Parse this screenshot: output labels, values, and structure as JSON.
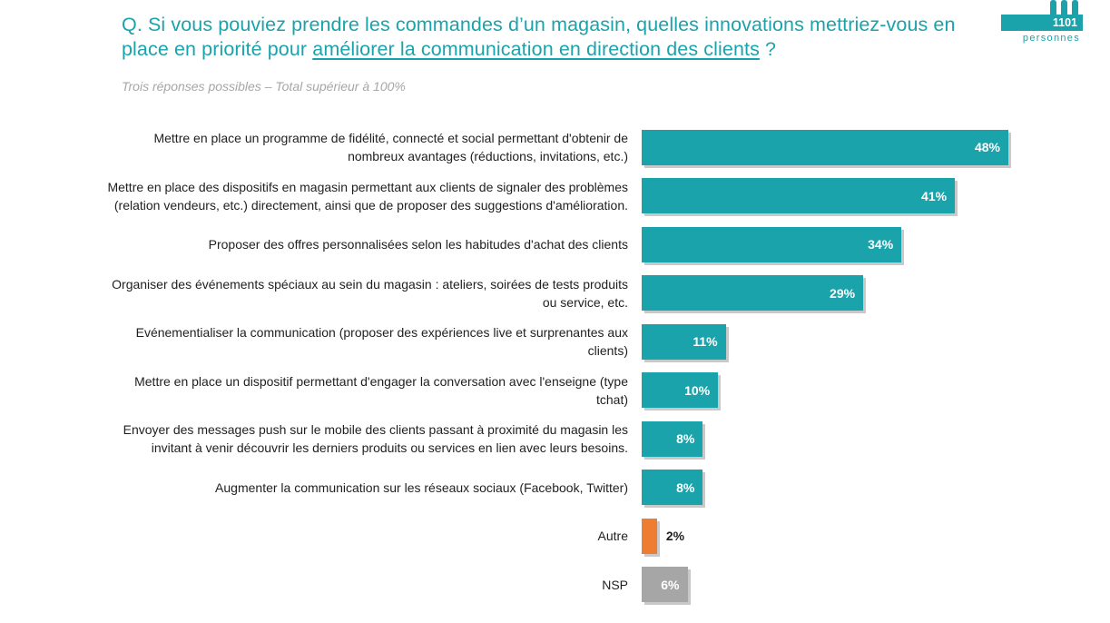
{
  "header": {
    "question_part1": "Q. Si vous pouviez prendre les commandes d’un magasin, quelles innovations mettriez-vous en place en priorité pour ",
    "question_highlight": "améliorer la communication en direction des clients",
    "question_end": " ?",
    "subtitle": "Trois réponses possibles – Total supérieur à 100%"
  },
  "badge": {
    "count": "1101",
    "label": "personnes",
    "icon": "people-icon"
  },
  "colors": {
    "teal": "#1ba3ab",
    "orange": "#ed7d31",
    "gray": "#a6a6a6"
  },
  "chart_data": {
    "type": "bar",
    "orientation": "horizontal",
    "unit": "%",
    "xlim": [
      0,
      48
    ],
    "categories": [
      "Mettre en place un programme de fidélité, connecté et social permettant d'obtenir de nombreux avantages (réductions, invitations, etc.)",
      "Mettre en place des dispositifs en magasin permettant aux clients de signaler des problèmes (relation vendeurs, etc.) directement, ainsi que de proposer des suggestions d'amélioration.",
      "Proposer des offres personnalisées selon les habitudes d'achat des clients",
      "Organiser des événements spéciaux au sein du magasin : ateliers, soirées de tests produits ou service, etc.",
      "Evénementialiser la communication (proposer des expériences live et surprenantes aux clients)",
      "Mettre en place un dispositif permettant d'engager la conversation avec l'enseigne (type tchat)",
      "Envoyer des messages push sur le mobile des clients passant à proximité du magasin les invitant à venir découvrir les derniers produits ou services en lien avec leurs besoins.",
      "Augmenter la communication sur les réseaux sociaux (Facebook, Twitter)",
      "Autre",
      "NSP"
    ],
    "label_lines": [
      [
        "Mettre en place un programme de fidélité, connecté et social permettant d'obtenir de",
        "nombreux avantages (réductions, invitations, etc.)"
      ],
      [
        "Mettre en place des dispositifs en magasin permettant aux clients de signaler des problèmes",
        "(relation vendeurs, etc.) directement, ainsi que de proposer des suggestions d'amélioration."
      ],
      [
        "Proposer des offres personnalisées selon les habitudes d'achat des clients"
      ],
      [
        "Organiser des événements spéciaux au sein du magasin : ateliers, soirées de tests produits",
        "ou service, etc."
      ],
      [
        "Evénementialiser la communication (proposer des expériences live et surprenantes aux",
        "clients)"
      ],
      [
        "Mettre en place un dispositif permettant d'engager la conversation avec l'enseigne (type",
        "tchat)"
      ],
      [
        "Envoyer des messages push sur le mobile des clients passant à proximité du magasin les",
        "invitant à venir découvrir les derniers produits ou services en lien avec leurs besoins."
      ],
      [
        "Augmenter la communication sur les réseaux sociaux (Facebook, Twitter)"
      ],
      [
        "Autre"
      ],
      [
        "NSP"
      ]
    ],
    "values": [
      48,
      41,
      34,
      29,
      11,
      10,
      8,
      8,
      2,
      6
    ],
    "value_labels": [
      "48%",
      "41%",
      "34%",
      "29%",
      "11%",
      "10%",
      "8%",
      "8%",
      "2%",
      "6%"
    ],
    "bar_colors": [
      "#1ba3ab",
      "#1ba3ab",
      "#1ba3ab",
      "#1ba3ab",
      "#1ba3ab",
      "#1ba3ab",
      "#1ba3ab",
      "#1ba3ab",
      "#ed7d31",
      "#a6a6a6"
    ],
    "grid": false,
    "legend": "none"
  }
}
